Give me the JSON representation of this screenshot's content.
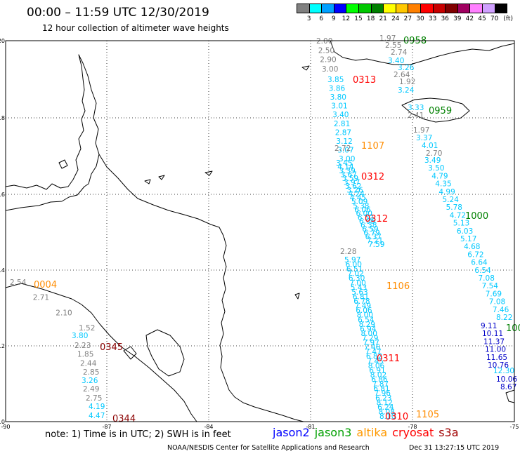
{
  "header": {
    "title": "00:00 – 11:59 UTC 12/30/2019",
    "subtitle": "12 hour collection of altimeter wave heights"
  },
  "color_scale": {
    "unit": "(ft)",
    "colors": [
      "#808080",
      "#00ffff",
      "#00a0ff",
      "#0000ff",
      "#00ff00",
      "#00c800",
      "#008000",
      "#ffff00",
      "#ffc800",
      "#ff8000",
      "#ff0000",
      "#c80000",
      "#800000",
      "#a00060",
      "#ff80ff",
      "#d0a0ff",
      "#000000"
    ],
    "labels": [
      "3",
      "6",
      "9",
      "12",
      "15",
      "18",
      "21",
      "24",
      "27",
      "30",
      "33",
      "36",
      "39",
      "42",
      "45",
      "70"
    ]
  },
  "axes": {
    "y_ticks": [
      "20",
      "18",
      "16",
      "14",
      "12",
      "10"
    ],
    "x_ticks": [
      "-90",
      "-87",
      "-84",
      "-81",
      "-78",
      "-75"
    ]
  },
  "tracks": [
    {
      "sat": "cryosat",
      "color": "#808080",
      "values": [
        "2.00",
        "2.50",
        "2.90",
        "3.00"
      ]
    },
    {
      "sat": "jason2",
      "color": "#00c8ff",
      "values": [
        "3.85",
        "3.86",
        "3.80",
        "3.01",
        "3.40",
        "2.81",
        "2.87",
        "3.12",
        "3.07",
        "3.00"
      ]
    },
    {
      "sat": "cryosat",
      "color": "#808080",
      "values": [
        "2.72"
      ]
    },
    {
      "sat": "jason2",
      "color": "#00c8ff",
      "values": [
        "3.45",
        "4.14",
        "3.39",
        "3.67",
        "3.59",
        "3.97",
        "3.62",
        "3.26",
        "4.24",
        "4.45",
        "5.09",
        "5.38",
        "6.06",
        "6.00",
        "6.52",
        "6.06",
        "6.38",
        "6.59",
        "6.79",
        "6.37",
        "7.21",
        "7.59"
      ]
    },
    {
      "sat": "cryosat",
      "color": "#808080",
      "values": [
        "2.28"
      ]
    },
    {
      "sat": "jason2",
      "color": "#00c8ff",
      "values": [
        "5.97",
        "6.00",
        "6.51",
        "7.02",
        "6.30",
        "7.00",
        "5.43",
        "5.63",
        "6.81",
        "6.78",
        "7.49",
        "6.06",
        "8.00",
        "6.54",
        "8.29",
        "6.94",
        "8.00",
        "7.29",
        "7.97",
        "7.46",
        "7.47",
        "6.82",
        "7.45",
        "8.06",
        "6.91",
        "8.02",
        "6.86",
        "7.87",
        "6.81",
        "7.96",
        "6.23",
        "8.12",
        "6.24",
        "8.08",
        "8.10"
      ]
    },
    {
      "sat": "cryosat",
      "color": "#808080",
      "values": [
        "1.97",
        "2.55",
        "2.74"
      ]
    },
    {
      "sat": "jason2",
      "color": "#00c8ff",
      "values": [
        "3.40",
        "3.26"
      ]
    },
    {
      "sat": "cryosat",
      "color": "#808080",
      "values": [
        "2.64",
        "1.92"
      ]
    },
    {
      "sat": "jason2",
      "color": "#00c8ff",
      "values": [
        "3.24",
        "3.33"
      ]
    },
    {
      "sat": "cryosat",
      "color": "#808080",
      "values": [
        "2.41",
        "1.97"
      ]
    },
    {
      "sat": "jason2",
      "color": "#00c8ff",
      "values": [
        "3.37",
        "4.01"
      ]
    },
    {
      "sat": "cryosat",
      "color": "#808080",
      "values": [
        "2.70"
      ]
    },
    {
      "sat": "jason2",
      "color": "#00c8ff",
      "values": [
        "3.49",
        "3.50",
        "4.79",
        "4.35",
        "4.99",
        "5.24",
        "5.78",
        "4.72",
        "5.13",
        "6.03",
        "5.17",
        "4.68",
        "6.72",
        "6.64",
        "6.54",
        "7.08",
        "7.54",
        "7.69",
        "7.08",
        "7.46",
        "8.22"
      ]
    },
    {
      "sat": "jason3",
      "color": "#0000c8",
      "values": [
        "9.11",
        "10.11",
        "11.37",
        "11.00",
        "11.65",
        "10.76"
      ]
    },
    {
      "sat": "jason2",
      "color": "#00c8ff",
      "values": [
        "12.30"
      ]
    },
    {
      "sat": "jason3",
      "color": "#0000c8",
      "values": [
        "10.06",
        "8.67"
      ]
    },
    {
      "sat": "cryosat",
      "color": "#808080",
      "values": [
        "2.54",
        "2.71",
        "2.10",
        "1.52"
      ]
    },
    {
      "sat": "jason2",
      "color": "#00c8ff",
      "values": [
        "3.80"
      ]
    },
    {
      "sat": "cryosat",
      "color": "#808080",
      "values": [
        "2.23",
        "1.85",
        "2.44",
        "2.85"
      ]
    },
    {
      "sat": "jason2",
      "color": "#00c8ff",
      "values": [
        "3.26"
      ]
    },
    {
      "sat": "cryosat",
      "color": "#808080",
      "values": [
        "2.49",
        "2.75"
      ]
    },
    {
      "sat": "jason2",
      "color": "#00c8ff",
      "values": [
        "4.19",
        "4.47"
      ]
    }
  ],
  "pass_times": [
    {
      "label": "0958",
      "color": "#008000"
    },
    {
      "label": "0313",
      "color": "#ff0000"
    },
    {
      "label": "0959",
      "color": "#008000"
    },
    {
      "label": "1107",
      "color": "#ff8c00"
    },
    {
      "label": "0312",
      "color": "#ff0000"
    },
    {
      "label": "0312",
      "color": "#ff0000"
    },
    {
      "label": "1000",
      "color": "#008000"
    },
    {
      "label": "0004",
      "color": "#ff8c00"
    },
    {
      "label": "1106",
      "color": "#ff8c00"
    },
    {
      "label": "100",
      "color": "#008000"
    },
    {
      "label": "0345",
      "color": "#8b0000"
    },
    {
      "label": "0311",
      "color": "#ff0000"
    },
    {
      "label": "1105",
      "color": "#ff8c00"
    },
    {
      "label": "0344",
      "color": "#8b0000"
    },
    {
      "label": "0310",
      "color": "#ff0000"
    }
  ],
  "footer": {
    "note": "note:  1) Time is in UTC;  2) SWH is in feet",
    "legend": [
      {
        "name": "jason2",
        "color": "#0000ff"
      },
      {
        "name": "jason3",
        "color": "#00a000"
      },
      {
        "name": "altika",
        "color": "#ff9900"
      },
      {
        "name": "cryosat",
        "color": "#ff0000"
      },
      {
        "name": "s3a",
        "color": "#a00000"
      }
    ],
    "credit": "NOAA/NESDIS Center for Satellite Applications and Research",
    "timestamp": "Dec 31 13:27:15 UTC 2019"
  }
}
